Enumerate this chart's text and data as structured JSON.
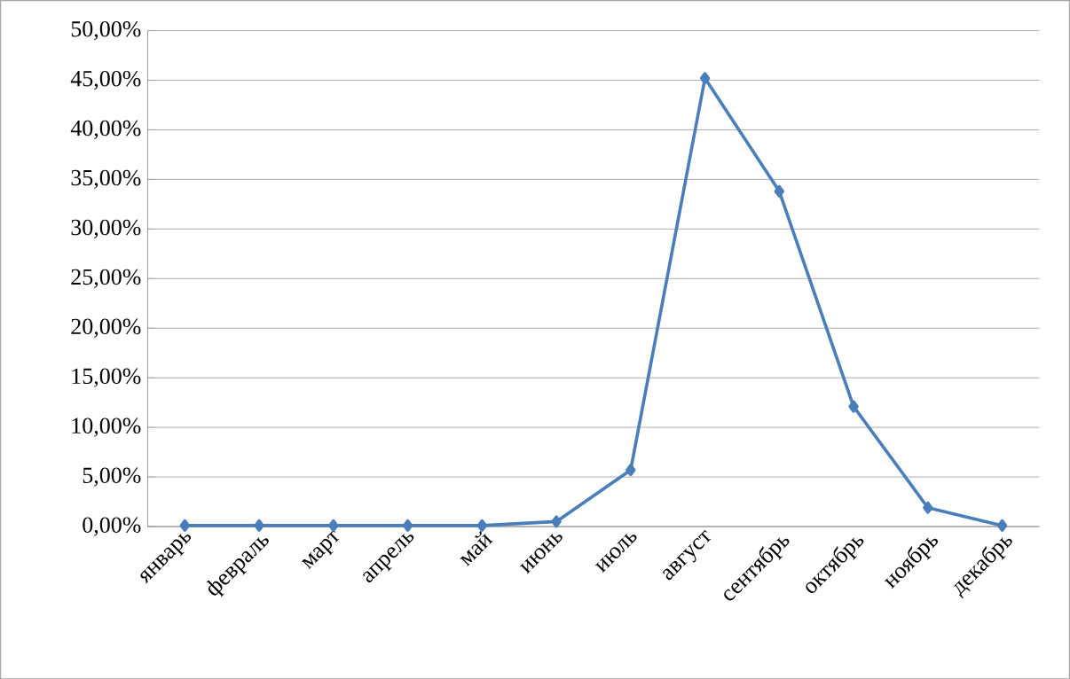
{
  "chart_data": {
    "type": "line",
    "categories": [
      "январь",
      "февраль",
      "март",
      "апрель",
      "май",
      "июнь",
      "июль",
      "август",
      "сентябрь",
      "октябрь",
      "ноябрь",
      "декабрь"
    ],
    "series": [
      {
        "color": "#4a7ebb",
        "values": [
          0.1,
          0.1,
          0.1,
          0.1,
          0.1,
          0.5,
          5.7,
          45.2,
          33.8,
          12.1,
          1.9,
          0.1
        ]
      }
    ],
    "ylim": [
      0,
      50
    ],
    "yticks": [
      {
        "value": 0,
        "label": "0,00%"
      },
      {
        "value": 5,
        "label": "5,00%"
      },
      {
        "value": 10,
        "label": "10,00%"
      },
      {
        "value": 15,
        "label": "15,00%"
      },
      {
        "value": 20,
        "label": "20,00%"
      },
      {
        "value": 25,
        "label": "25,00%"
      },
      {
        "value": 30,
        "label": "30,00%"
      },
      {
        "value": 35,
        "label": "35,00%"
      },
      {
        "value": 40,
        "label": "40,00%"
      },
      {
        "value": 45,
        "label": "45,00%"
      },
      {
        "value": 50,
        "label": "50,00%"
      }
    ],
    "grid": "y",
    "marker": "diamond",
    "line_style": "solid"
  }
}
